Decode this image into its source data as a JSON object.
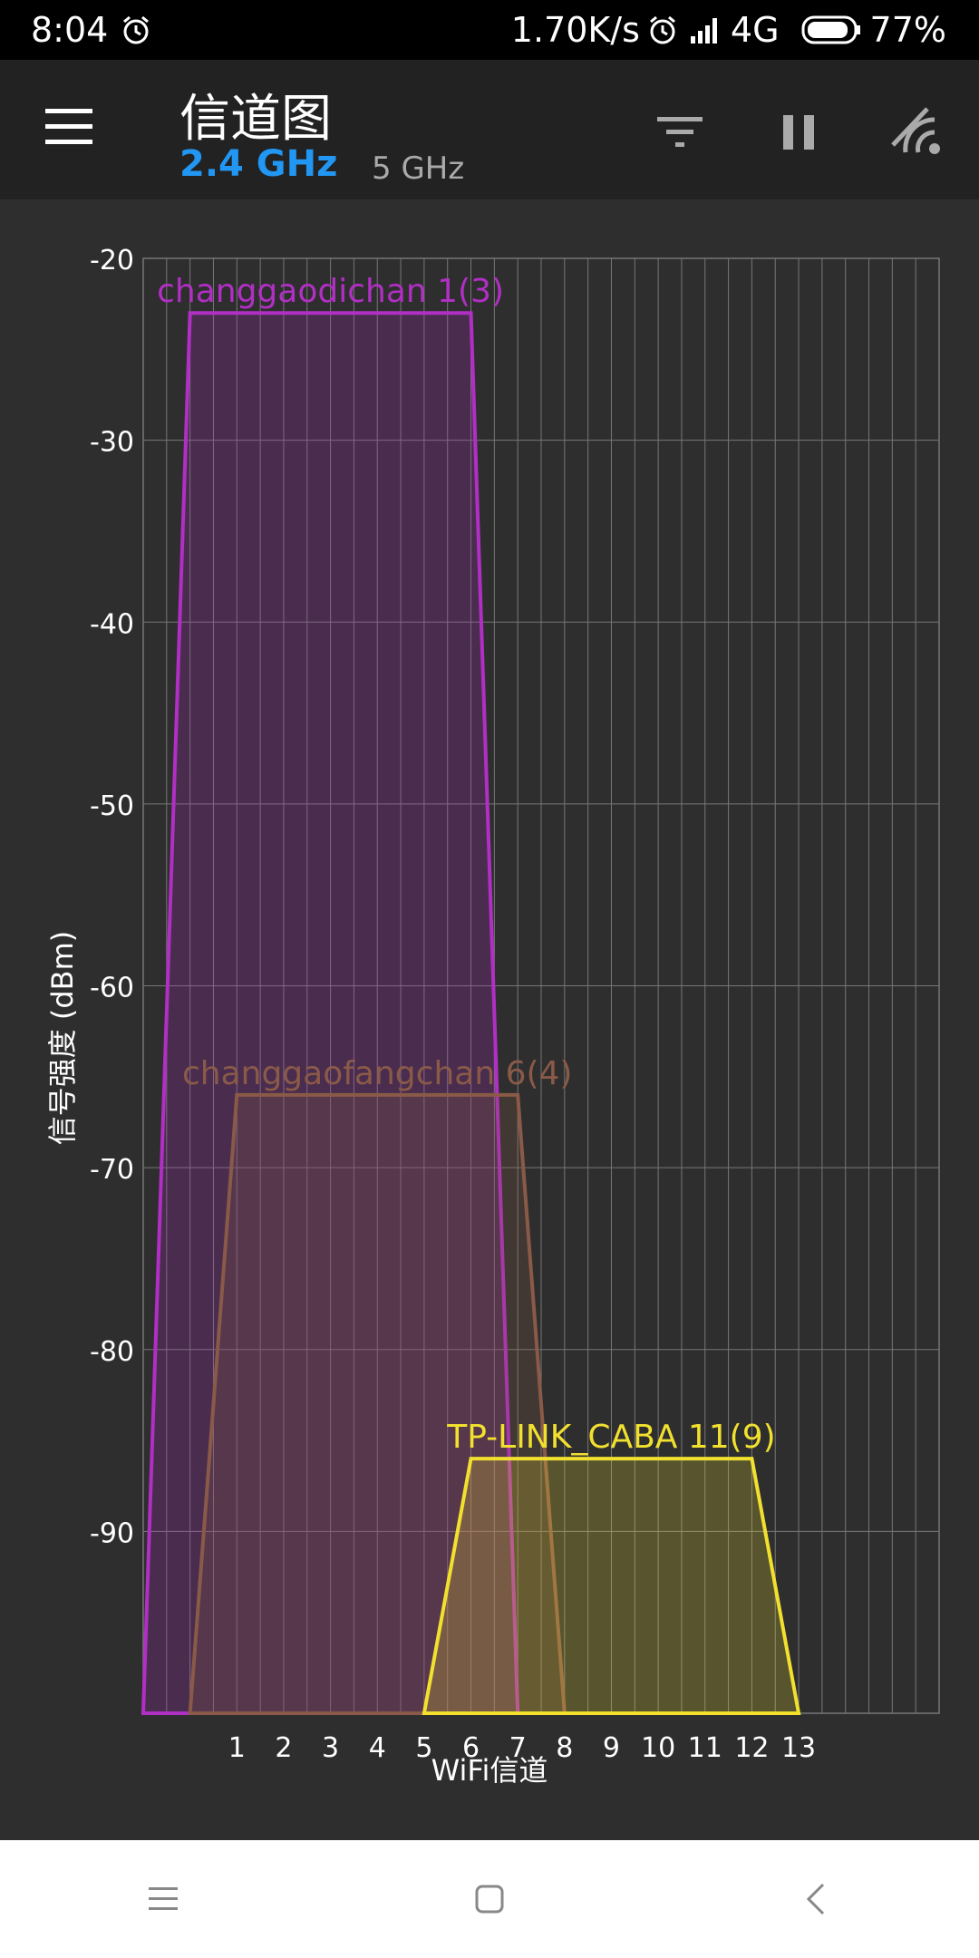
{
  "status_bar": {
    "time": "8:04",
    "speed": "1.70K/s",
    "network": "4G",
    "battery": "77%",
    "icons": [
      "alarm-icon",
      "alarm-icon",
      "signal-icon",
      "battery-icon"
    ]
  },
  "app_bar": {
    "title": "信道图",
    "tabs": [
      {
        "label": "2.4 GHz",
        "selected": true
      },
      {
        "label": "5 GHz",
        "selected": false
      }
    ],
    "actions": [
      "filter-icon",
      "pause-icon",
      "wifi-scan-icon"
    ],
    "accent_color": "#2196f3"
  },
  "chart_data": {
    "type": "area",
    "xlabel": "WiFi信道",
    "ylabel": "信号强度 (dBm)",
    "x_ticks": [
      1,
      2,
      3,
      4,
      5,
      6,
      7,
      8,
      9,
      10,
      11,
      12,
      13
    ],
    "x_range": [
      -1,
      16
    ],
    "y_ticks": [
      -20,
      -30,
      -40,
      -50,
      -60,
      -70,
      -80,
      -90
    ],
    "ylim": [
      -100,
      -20
    ],
    "grid": true,
    "series": [
      {
        "name": "changgaodichan",
        "channel": 1,
        "width_label": "3",
        "label": "changgaodichan 1(3)",
        "signal_dbm": -23,
        "span": [
          -1,
          7
        ],
        "top_span": [
          0,
          6
        ],
        "color": "#b12fc4"
      },
      {
        "name": "changgaofangchan",
        "channel": 6,
        "width_label": "4",
        "label": "changgaofangchan 6(4)",
        "signal_dbm": -66,
        "span": [
          0,
          8
        ],
        "top_span": [
          1,
          7
        ],
        "color": "#8a5a48"
      },
      {
        "name": "TP-LINK_CABA",
        "channel": 11,
        "width_label": "9",
        "label": "TP-LINK_CABA 11(9)",
        "signal_dbm": -86,
        "span": [
          5,
          13
        ],
        "top_span": [
          6,
          12
        ],
        "color": "#f2e02f"
      }
    ]
  },
  "nav_bar": {
    "buttons": [
      "menu-icon",
      "home-icon",
      "back-icon"
    ]
  }
}
